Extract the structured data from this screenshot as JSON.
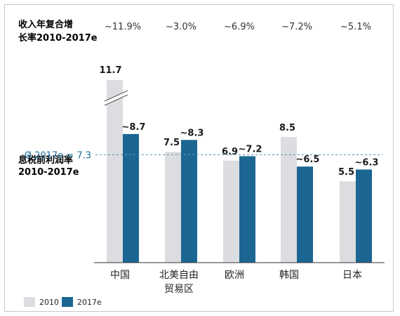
{
  "chart_data": {
    "type": "bar",
    "categories": [
      "中国",
      "北美自由贸易区",
      "欧洲",
      "韩国",
      "日本"
    ],
    "category_lines": [
      [
        "中国"
      ],
      [
        "北美自由",
        "贸易区"
      ],
      [
        "欧洲"
      ],
      [
        "韩国"
      ],
      [
        "日本"
      ]
    ],
    "series": [
      {
        "name": "2010",
        "values": [
          11.7,
          7.5,
          6.9,
          8.5,
          5.5
        ],
        "labels": [
          "11.7",
          "7.5",
          "6.9",
          "8.5",
          "5.5"
        ],
        "color": "#dcdde0"
      },
      {
        "name": "2017e",
        "values": [
          8.7,
          8.3,
          7.2,
          6.5,
          6.3
        ],
        "labels": [
          "~8.7",
          "~8.3",
          "~7.2",
          "~6.5",
          "~6.3"
        ],
        "color": "#1b6692"
      }
    ],
    "cagr_title": [
      "收入年复合增",
      "长率2010-2017e"
    ],
    "cagr_values": [
      "~11.9%",
      "~3.0%",
      "~6.9%",
      "~7.2%",
      "~5.1%"
    ],
    "margin_title": [
      "息税前利润率",
      "2010-2017e"
    ],
    "reference_line": {
      "value": 7.3,
      "label": "Ø 2017e = 7.3",
      "color": "#5b9bc0"
    },
    "axis_break_category": "中国",
    "ylim": [
      0,
      11.7
    ],
    "legend": [
      "2010",
      "2017e"
    ],
    "grid": false
  }
}
